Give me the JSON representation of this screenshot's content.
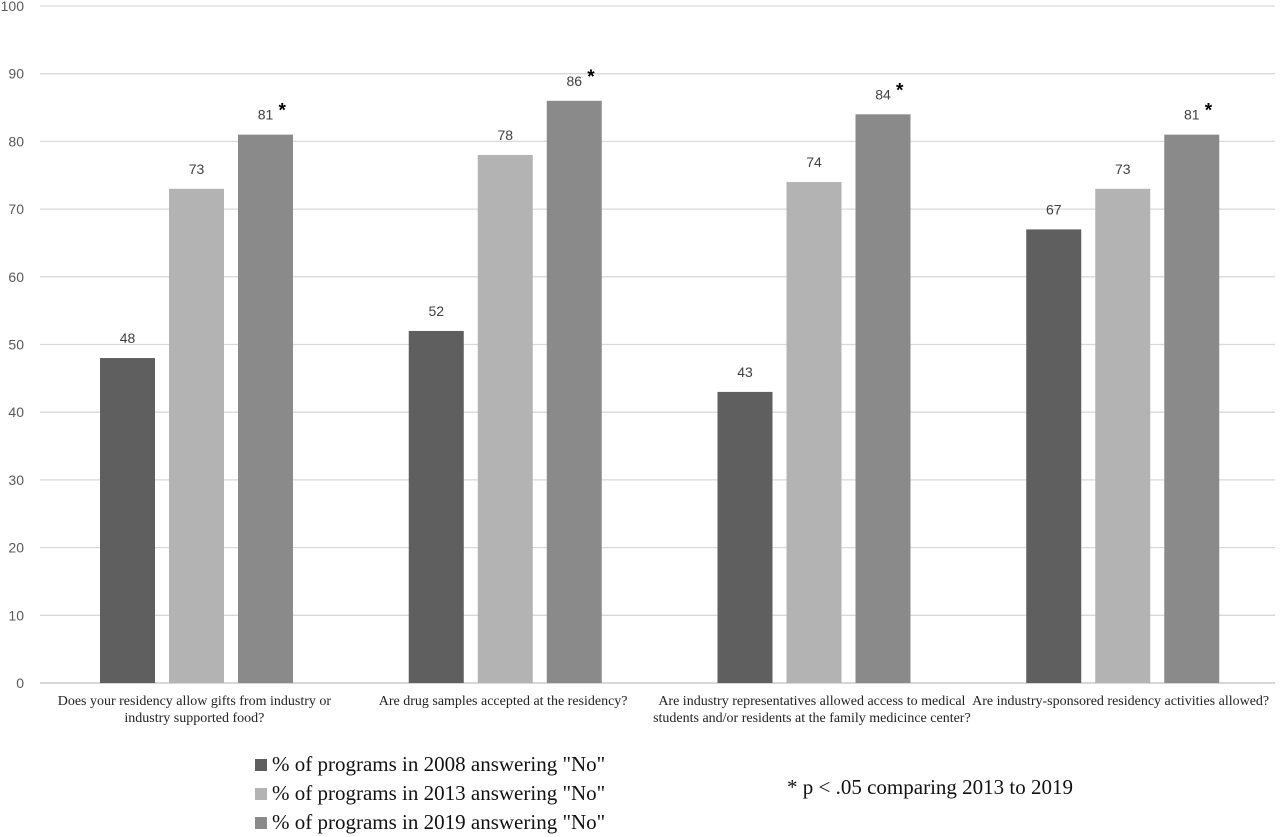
{
  "chart_data": {
    "type": "bar",
    "categories": [
      "Does your residency allow gifts from industry or industry supported food?",
      "Are drug samples accepted at the residency?",
      "Are industry representatives allowed access to medical students and/or residents at the family medicince center?",
      "Are industry-sponsored residency activities allowed?"
    ],
    "series": [
      {
        "name": "% of programs in 2008 answering \"No\"",
        "values": [
          48,
          52,
          43,
          67
        ],
        "color": "#5f5f5f"
      },
      {
        "name": "% of programs in 2013 answering \"No\"",
        "values": [
          73,
          78,
          74,
          73
        ],
        "color": "#b3b3b3"
      },
      {
        "name": "% of programs in 2019 answering \"No\"",
        "values": [
          81,
          86,
          84,
          81
        ],
        "color": "#8a8a8a"
      }
    ],
    "significant": [
      {
        "category_index": 0,
        "series_index": 2,
        "marker": "*"
      },
      {
        "category_index": 1,
        "series_index": 2,
        "marker": "*"
      },
      {
        "category_index": 2,
        "series_index": 2,
        "marker": "*"
      },
      {
        "category_index": 3,
        "series_index": 2,
        "marker": "*"
      }
    ],
    "ylim": [
      0,
      100
    ],
    "yticks": [
      0,
      10,
      20,
      30,
      40,
      50,
      60,
      70,
      80,
      90,
      100
    ],
    "grid": true,
    "legend_position": "bottom-left",
    "note": "* p < .05 comparing 2013 to 2019"
  }
}
